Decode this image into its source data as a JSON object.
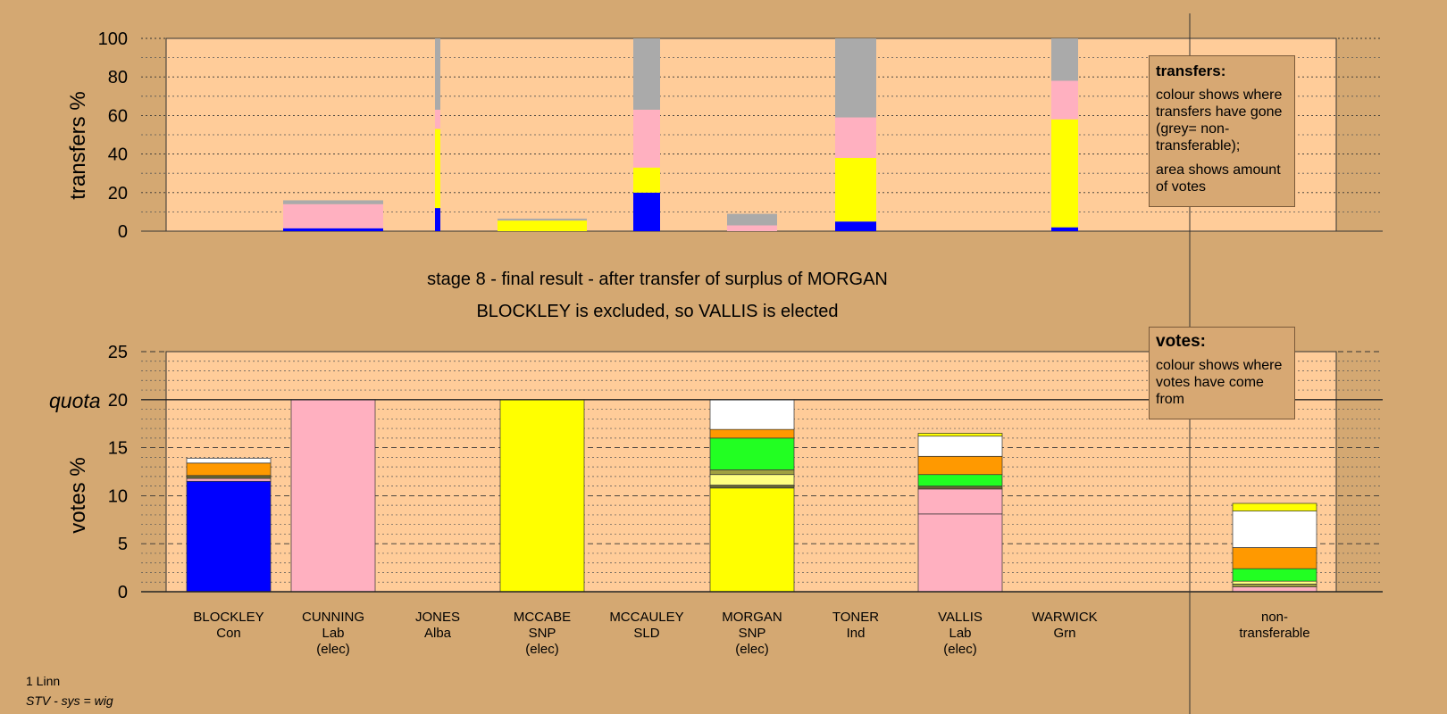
{
  "chart_data": [
    {
      "type": "bar",
      "stacked": true,
      "ylabel": "transfers %",
      "ylim": [
        0,
        100
      ],
      "yticks": [
        0,
        20,
        40,
        60,
        80,
        100
      ],
      "grid": true,
      "colors": {
        "blue": "#0000ff",
        "pink": "#ffb0c0",
        "yellow": "#ffff00",
        "grey": "#aaaaaa"
      },
      "transfers": [
        {
          "candidate": "BLOCKLEY",
          "segments": []
        },
        {
          "candidate": "CUNNING",
          "segments": [
            {
              "color": "blue",
              "value": 1.5
            },
            {
              "color": "pink",
              "value": 12.5
            },
            {
              "color": "grey",
              "value": 2
            }
          ]
        },
        {
          "candidate": "JONES",
          "segments": [
            {
              "color": "blue",
              "value": 12
            },
            {
              "color": "yellow",
              "value": 41
            },
            {
              "color": "pink",
              "value": 10
            },
            {
              "color": "grey",
              "value": 37
            }
          ]
        },
        {
          "candidate": "MCCABE",
          "segments": [
            {
              "color": "yellow",
              "value": 5.5
            },
            {
              "color": "grey",
              "value": 1
            }
          ]
        },
        {
          "candidate": "MCCAULEY",
          "segments": [
            {
              "color": "blue",
              "value": 20
            },
            {
              "color": "yellow",
              "value": 13
            },
            {
              "color": "pink",
              "value": 30
            },
            {
              "color": "grey",
              "value": 37
            }
          ]
        },
        {
          "candidate": "MORGAN",
          "segments": [
            {
              "color": "pink",
              "value": 3
            },
            {
              "color": "grey",
              "value": 6
            }
          ]
        },
        {
          "candidate": "TONER",
          "segments": [
            {
              "color": "blue",
              "value": 5
            },
            {
              "color": "yellow",
              "value": 33
            },
            {
              "color": "pink",
              "value": 21
            },
            {
              "color": "grey",
              "value": 41
            }
          ]
        },
        {
          "candidate": "VALLIS",
          "segments": []
        },
        {
          "candidate": "WARWICK",
          "segments": [
            {
              "color": "blue",
              "value": 2
            },
            {
              "color": "yellow",
              "value": 56
            },
            {
              "color": "pink",
              "value": 20
            },
            {
              "color": "grey",
              "value": 22
            }
          ]
        }
      ]
    },
    {
      "type": "bar",
      "stacked": true,
      "ylabel": "votes %",
      "ylim": [
        0,
        25
      ],
      "yticks": [
        0,
        5,
        10,
        15,
        20,
        25
      ],
      "quota": 20,
      "quota_label": "quota",
      "grid": true,
      "colors": {
        "blue": "#0000ff",
        "pink": "#ffb0c0",
        "yellow": "#ffff00",
        "green": "#22ff22",
        "orange": "#ff9900",
        "white": "#ffffff",
        "olive": "#a0a040",
        "darkolive": "#666633",
        "lightyellow": "#ffff80"
      },
      "candidates": [
        {
          "name": "BLOCKLEY",
          "party": "Con",
          "note": "",
          "segments": [
            {
              "color": "blue",
              "value": 11.5
            },
            {
              "color": "pink",
              "value": 0.3
            },
            {
              "color": "darkolive",
              "value": 0.3
            },
            {
              "color": "orange",
              "value": 1.3
            },
            {
              "color": "white",
              "value": 0.5
            }
          ]
        },
        {
          "name": "CUNNING",
          "party": "Lab",
          "note": "(elec)",
          "segments": [
            {
              "color": "pink",
              "value": 20
            }
          ]
        },
        {
          "name": "JONES",
          "party": "Alba",
          "note": "",
          "segments": []
        },
        {
          "name": "MCCABE",
          "party": "SNP",
          "note": "(elec)",
          "segments": [
            {
              "color": "yellow",
              "value": 20
            }
          ]
        },
        {
          "name": "MCCAULEY",
          "party": "SLD",
          "note": "",
          "segments": []
        },
        {
          "name": "MORGAN",
          "party": "SNP",
          "note": "(elec)",
          "segments": [
            {
              "color": "yellow",
              "value": 10.8
            },
            {
              "color": "darkolive",
              "value": 0.3
            },
            {
              "color": "lightyellow",
              "value": 1.1
            },
            {
              "color": "olive",
              "value": 0.5
            },
            {
              "color": "green",
              "value": 3.3
            },
            {
              "color": "orange",
              "value": 0.9
            },
            {
              "color": "white",
              "value": 3.1
            }
          ]
        },
        {
          "name": "TONER",
          "party": "Ind",
          "note": "",
          "segments": []
        },
        {
          "name": "VALLIS",
          "party": "Lab",
          "note": "(elec)",
          "segments": [
            {
              "color": "pink",
              "value": 8.1
            },
            {
              "color": "pink",
              "value": 2.6
            },
            {
              "color": "darkolive",
              "value": 0.3
            },
            {
              "color": "green",
              "value": 1.2
            },
            {
              "color": "orange",
              "value": 1.9
            },
            {
              "color": "white",
              "value": 2.1
            },
            {
              "color": "yellow",
              "value": 0.3
            }
          ]
        },
        {
          "name": "WARWICK",
          "party": "Grn",
          "note": "",
          "segments": []
        }
      ],
      "nontransferable": {
        "label_line1": "non-",
        "label_line2": "transferable",
        "segments": [
          {
            "color": "pink",
            "value": 0.5
          },
          {
            "color": "olive",
            "value": 0.3
          },
          {
            "color": "lightyellow",
            "value": 0.3
          },
          {
            "color": "green",
            "value": 1.3
          },
          {
            "color": "orange",
            "value": 2.2
          },
          {
            "color": "white",
            "value": 3.8
          },
          {
            "color": "yellow",
            "value": 0.8
          }
        ]
      }
    }
  ],
  "titles": {
    "line1": "stage 8 - final result - after transfer of surplus of MORGAN",
    "line2": "BLOCKLEY is excluded, so VALLIS is elected"
  },
  "legend_transfers": {
    "title": "transfers:",
    "p1": "colour shows where transfers have gone (grey= non-transferable);",
    "p2": "area shows amount of votes"
  },
  "legend_votes": {
    "title": "votes:",
    "p1": "colour shows where votes have come from"
  },
  "footer": {
    "constituency": "1 Linn",
    "system": "STV - sys = wig"
  }
}
